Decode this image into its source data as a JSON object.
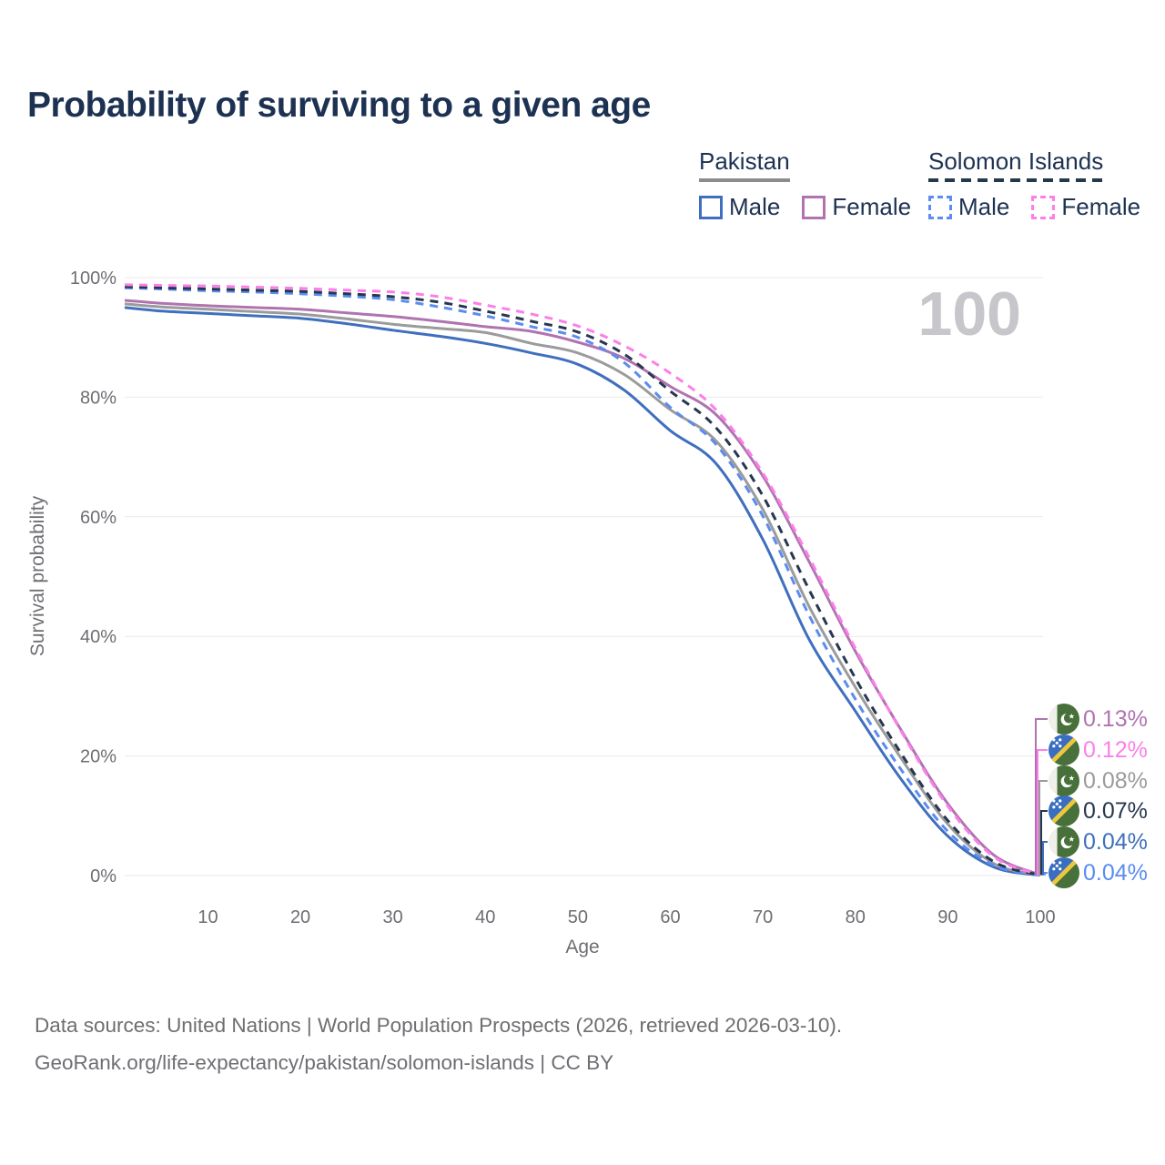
{
  "page": {
    "title": "Probability of surviving to a given age"
  },
  "legend": {
    "groups": [
      {
        "label": "Pakistan",
        "line_style": "solid",
        "underline_color": "#8c8c8c",
        "items": [
          {
            "label": "Male",
            "color": "#3f6fbe"
          },
          {
            "label": "Female",
            "color": "#b073b0"
          }
        ]
      },
      {
        "label": "Solomon Islands",
        "line_style": "dashed",
        "underline_color": "#26374e",
        "items": [
          {
            "label": "Male",
            "color": "#5a8cf1"
          },
          {
            "label": "Female",
            "color": "#fc7fe9"
          }
        ]
      }
    ]
  },
  "watermark_age": "100",
  "chart_data": {
    "type": "line",
    "title": "Probability of surviving to a given age",
    "xlabel": "Age",
    "ylabel": "Survival probability",
    "xlim": [
      1,
      100
    ],
    "ylim": [
      0,
      100
    ],
    "xticks": [
      10,
      20,
      30,
      40,
      50,
      60,
      70,
      80,
      90,
      100
    ],
    "ytick_values": [
      0,
      20,
      40,
      60,
      80,
      100
    ],
    "ytick_labels": [
      "0%",
      "20%",
      "40%",
      "60%",
      "80%",
      "100%"
    ],
    "grid": "horizontal",
    "legend_position": "top-right",
    "ages": [
      1,
      5,
      10,
      15,
      20,
      25,
      30,
      35,
      40,
      45,
      50,
      55,
      60,
      65,
      70,
      75,
      80,
      85,
      90,
      95,
      100
    ],
    "series": [
      {
        "name": "Pakistan Male",
        "country": "Pakistan",
        "sex": "Male",
        "line_style": "solid",
        "color": "#3f6fbe",
        "end_label": "0.04%",
        "values": [
          95.0,
          94.4,
          94.0,
          93.6,
          93.2,
          92.3,
          91.2,
          90.2,
          89.0,
          87.4,
          85.5,
          81.2,
          74.4,
          68.8,
          56.2,
          39.5,
          27.5,
          16.0,
          6.6,
          1.4,
          0.04
        ]
      },
      {
        "name": "Pakistan",
        "country": "Pakistan",
        "sex": "Both",
        "line_style": "solid",
        "color": "#9b9b9b",
        "end_label": "0.08%",
        "values": [
          95.6,
          95.1,
          94.7,
          94.3,
          93.9,
          93.1,
          92.2,
          91.5,
          90.8,
          89.0,
          87.4,
          83.8,
          77.9,
          72.6,
          61.2,
          45.0,
          31.5,
          19.5,
          8.6,
          2.0,
          0.08
        ]
      },
      {
        "name": "Pakistan Female",
        "country": "Pakistan",
        "sex": "Female",
        "line_style": "solid",
        "color": "#b073b0",
        "end_label": "0.13%",
        "values": [
          96.2,
          95.7,
          95.3,
          95.0,
          94.7,
          94.1,
          93.5,
          92.7,
          91.8,
          91.0,
          89.2,
          86.5,
          81.8,
          77.0,
          66.8,
          52.5,
          37.5,
          24.2,
          12.0,
          3.4,
          0.13
        ]
      },
      {
        "name": "Solomon Islands Male",
        "country": "Solomon Islands",
        "sex": "Male",
        "line_style": "dashed",
        "color": "#5a8cf1",
        "end_label": "0.04%",
        "values": [
          98.3,
          98.1,
          97.8,
          97.6,
          97.3,
          96.9,
          96.3,
          95.1,
          93.6,
          91.8,
          90.0,
          85.8,
          78.3,
          72.0,
          60.1,
          43.5,
          29.5,
          17.6,
          7.4,
          1.7,
          0.04
        ]
      },
      {
        "name": "Solomon Islands",
        "country": "Solomon Islands",
        "sex": "Both",
        "line_style": "dashed",
        "color": "#26374e",
        "end_label": "0.07%",
        "values": [
          98.5,
          98.3,
          98.1,
          97.9,
          97.7,
          97.3,
          96.8,
          95.9,
          94.4,
          92.7,
          90.9,
          87.2,
          81.0,
          74.8,
          63.5,
          47.8,
          33.0,
          20.3,
          9.2,
          2.3,
          0.07
        ]
      },
      {
        "name": "Solomon Islands Female",
        "country": "Solomon Islands",
        "sex": "Female",
        "line_style": "dashed",
        "color": "#fc7fe9",
        "end_label": "0.12%",
        "values": [
          98.8,
          98.7,
          98.6,
          98.4,
          98.2,
          97.9,
          97.6,
          96.8,
          95.4,
          93.9,
          91.9,
          88.6,
          84.0,
          77.8,
          67.3,
          53.2,
          38.0,
          24.0,
          11.6,
          3.1,
          0.12
        ]
      }
    ]
  },
  "callouts": [
    {
      "flag": "pakistan",
      "series": "Pakistan Female",
      "value": "0.13%",
      "color": "#b073b0"
    },
    {
      "flag": "solomon-islands",
      "series": "Solomon Islands Female",
      "value": "0.12%",
      "color": "#fc7fe9"
    },
    {
      "flag": "pakistan",
      "series": "Pakistan",
      "value": "0.08%",
      "color": "#9b9b9b"
    },
    {
      "flag": "solomon-islands",
      "series": "Solomon Islands",
      "value": "0.07%",
      "color": "#26374e"
    },
    {
      "flag": "pakistan",
      "series": "Pakistan Male",
      "value": "0.04%",
      "color": "#3f6fbe"
    },
    {
      "flag": "solomon-islands",
      "series": "Solomon Islands Male",
      "value": "0.04%",
      "color": "#5a8cf1"
    }
  ],
  "footer": {
    "line1": "Data sources: United Nations | World Population Prospects (2026, retrieved 2026-03-10).",
    "line2": "GeoRank.org/life-expectancy/pakistan/solomon-islands | CC BY"
  }
}
